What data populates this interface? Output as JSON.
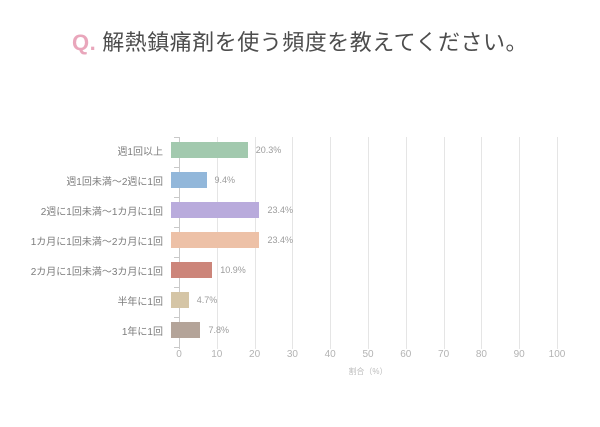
{
  "title": {
    "prefix": "Q.",
    "text": "解熱鎮痛剤を使う頻度を教えてください。",
    "prefix_color": "#e9a6bb",
    "text_color": "#4d4d4d"
  },
  "chart_data": {
    "type": "bar",
    "orientation": "horizontal",
    "categories": [
      "週1回以上",
      "週1回未満～2週に1回",
      "2週に1回未満～1カ月に1回",
      "1カ月に1回未満～2カ月に1回",
      "2カ月に1回未満～3カ月に1回",
      "半年に1回",
      "1年に1回"
    ],
    "values": [
      20.3,
      9.4,
      23.4,
      23.4,
      10.9,
      4.7,
      7.8
    ],
    "value_labels": [
      "20.3%",
      "9.4%",
      "23.4%",
      "23.4%",
      "10.9%",
      "4.7%",
      "7.8%"
    ],
    "bar_colors": [
      "#a2c9ae",
      "#92b7da",
      "#b9abdc",
      "#edc1a7",
      "#cc857a",
      "#d5c5a6",
      "#b4a499"
    ],
    "xlabel": "割合（%）",
    "ticks": [
      0,
      10,
      20,
      30,
      40,
      50,
      60,
      70,
      80,
      90,
      100
    ],
    "xlim": [
      0,
      100
    ],
    "grid": "vertical",
    "grid_color": "#e5e5e5",
    "axis_color": "#c9c9c9"
  }
}
